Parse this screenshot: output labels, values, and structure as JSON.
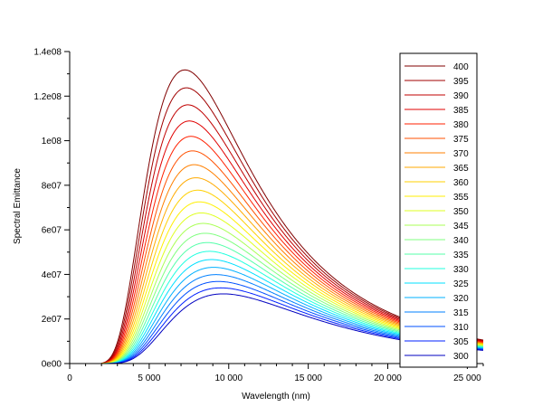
{
  "chart_data": {
    "type": "line",
    "title": "",
    "xlabel": "Wavelength (nm)",
    "ylabel": "Spectral Emittance",
    "xlim": [
      0,
      26000
    ],
    "ylim": [
      0,
      140000000
    ],
    "x_ticks": [
      0,
      5000,
      10000,
      15000,
      20000,
      25000
    ],
    "x_tick_labels": [
      "0",
      "5 000",
      "10 000",
      "15 000",
      "20 000",
      "25 000"
    ],
    "y_ticks": [
      0,
      20000000,
      40000000,
      60000000,
      80000000,
      100000000,
      120000000,
      140000000
    ],
    "y_tick_labels": [
      "0e00",
      "2e07",
      "4e07",
      "6e07",
      "8e07",
      "1e08",
      "1.2e08",
      "1.4e08"
    ],
    "grid": false,
    "legend_position": "right",
    "x_start": 2000,
    "x_end": 26000,
    "series": [
      {
        "name": "400",
        "temperature": 400,
        "peak_wavelength": 7244,
        "peak_value": 131500000,
        "color": "#800000"
      },
      {
        "name": "395",
        "temperature": 395,
        "peak_wavelength": 7336,
        "peak_value": 123700000,
        "color": "#a00000"
      },
      {
        "name": "390",
        "temperature": 390,
        "peak_wavelength": 7430,
        "peak_value": 116200000,
        "color": "#c00000"
      },
      {
        "name": "385",
        "temperature": 385,
        "peak_wavelength": 7526,
        "peak_value": 109000000,
        "color": "#e00000"
      },
      {
        "name": "380",
        "temperature": 380,
        "peak_wavelength": 7626,
        "peak_value": 102000000,
        "color": "#ff2000"
      },
      {
        "name": "375",
        "temperature": 375,
        "peak_wavelength": 7727,
        "peak_value": 95500000,
        "color": "#ff5000"
      },
      {
        "name": "370",
        "temperature": 370,
        "peak_wavelength": 7832,
        "peak_value": 89200000,
        "color": "#ff8000"
      },
      {
        "name": "365",
        "temperature": 365,
        "peak_wavelength": 7939,
        "peak_value": 83200000,
        "color": "#ffaa00"
      },
      {
        "name": "360",
        "temperature": 360,
        "peak_wavelength": 8049,
        "peak_value": 77600000,
        "color": "#ffd000"
      },
      {
        "name": "355",
        "temperature": 355,
        "peak_wavelength": 8163,
        "peak_value": 72200000,
        "color": "#ffef00"
      },
      {
        "name": "350",
        "temperature": 350,
        "peak_wavelength": 8279,
        "peak_value": 67100000,
        "color": "#dfff20"
      },
      {
        "name": "345",
        "temperature": 345,
        "peak_wavelength": 8399,
        "peak_value": 62200000,
        "color": "#aaff55"
      },
      {
        "name": "340",
        "temperature": 340,
        "peak_wavelength": 8523,
        "peak_value": 57600000,
        "color": "#80ff80"
      },
      {
        "name": "335",
        "temperature": 335,
        "peak_wavelength": 8650,
        "peak_value": 53300000,
        "color": "#55ffaa"
      },
      {
        "name": "330",
        "temperature": 330,
        "peak_wavelength": 8781,
        "peak_value": 49200000,
        "color": "#20ffdf"
      },
      {
        "name": "325",
        "temperature": 325,
        "peak_wavelength": 8916,
        "peak_value": 45300000,
        "color": "#00e0ff"
      },
      {
        "name": "320",
        "temperature": 320,
        "peak_wavelength": 9055,
        "peak_value": 41700000,
        "color": "#00b0ff"
      },
      {
        "name": "315",
        "temperature": 315,
        "peak_wavelength": 9199,
        "peak_value": 38200000,
        "color": "#0080ff"
      },
      {
        "name": "310",
        "temperature": 310,
        "peak_wavelength": 9347,
        "peak_value": 35000000,
        "color": "#0050ff"
      },
      {
        "name": "305",
        "temperature": 305,
        "peak_wavelength": 9500,
        "peak_value": 32000000,
        "color": "#0020ff"
      },
      {
        "name": "300",
        "temperature": 300,
        "peak_wavelength": 9659,
        "peak_value": 29400000,
        "color": "#0000c0"
      }
    ]
  }
}
